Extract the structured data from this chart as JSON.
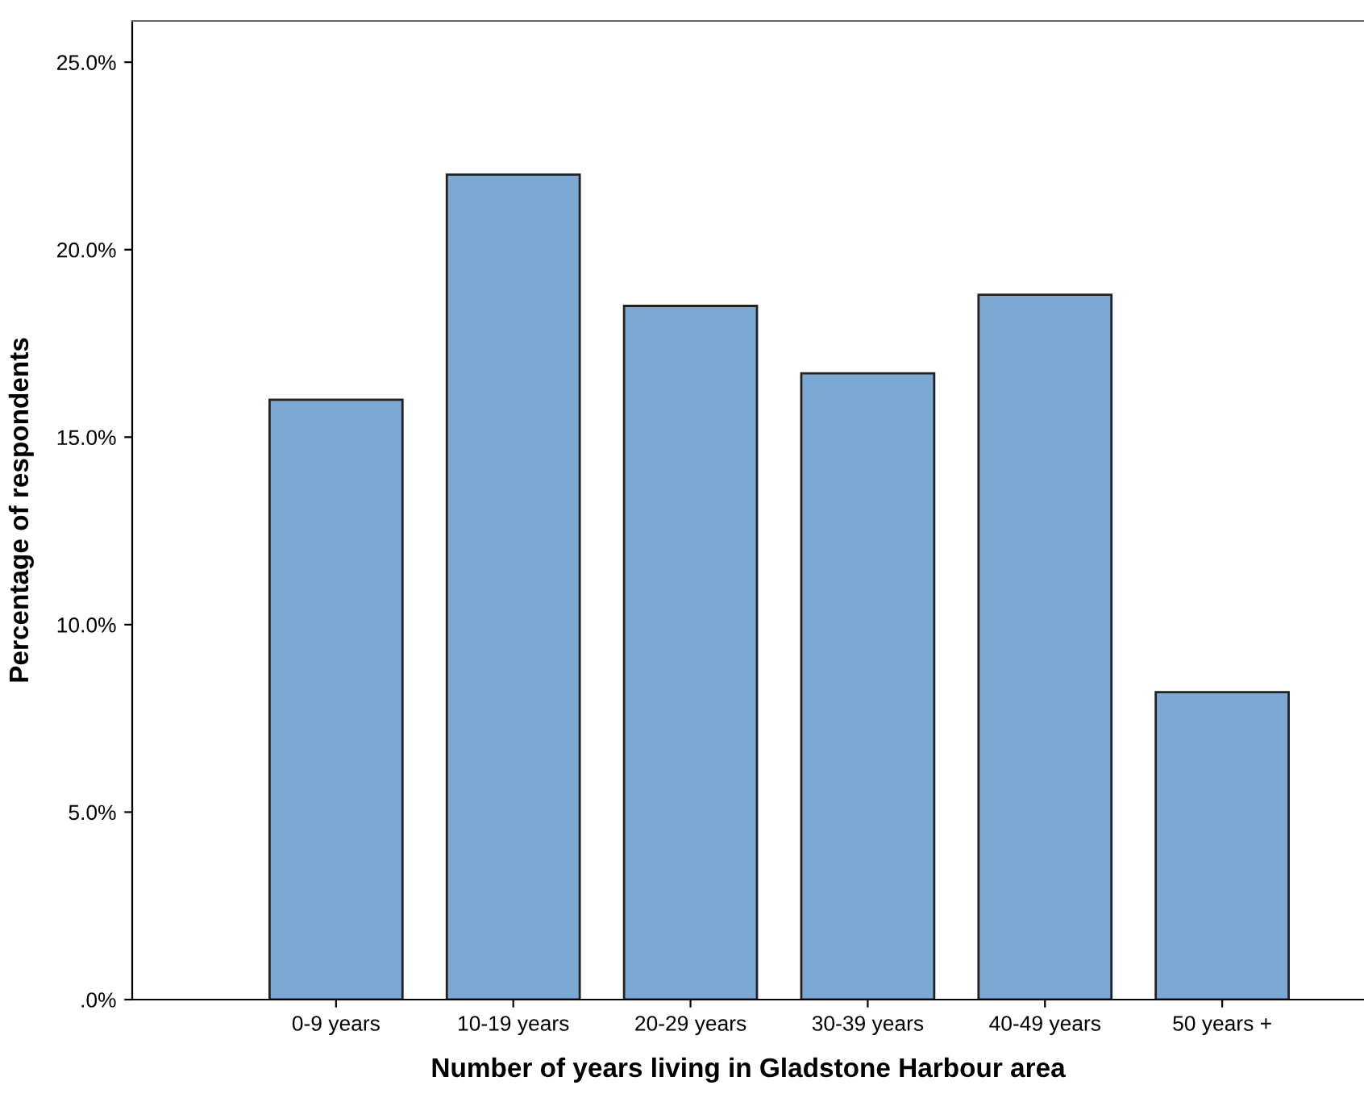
{
  "chart_data": {
    "type": "bar",
    "xlabel": "Number of years living in Gladstone Harbour area",
    "ylabel": "Percentage of respondents",
    "categories": [
      "0-9 years",
      "10-19 years",
      "20-29 years",
      "30-39 years",
      "40-49 years",
      "50 years +"
    ],
    "values": [
      16.0,
      22.0,
      18.5,
      16.7,
      18.8,
      8.2
    ],
    "color": "#7ba9d4",
    "ylim": [
      0,
      26.1
    ],
    "yticks": [
      {
        "value": 0,
        "label": ".0%"
      },
      {
        "value": 5,
        "label": "5.0%"
      },
      {
        "value": 10,
        "label": "10.0%"
      },
      {
        "value": 15,
        "label": "15.0%"
      },
      {
        "value": 20,
        "label": "20.0%"
      },
      {
        "value": 25,
        "label": "25.0%"
      }
    ],
    "grid": false,
    "legend": false
  }
}
